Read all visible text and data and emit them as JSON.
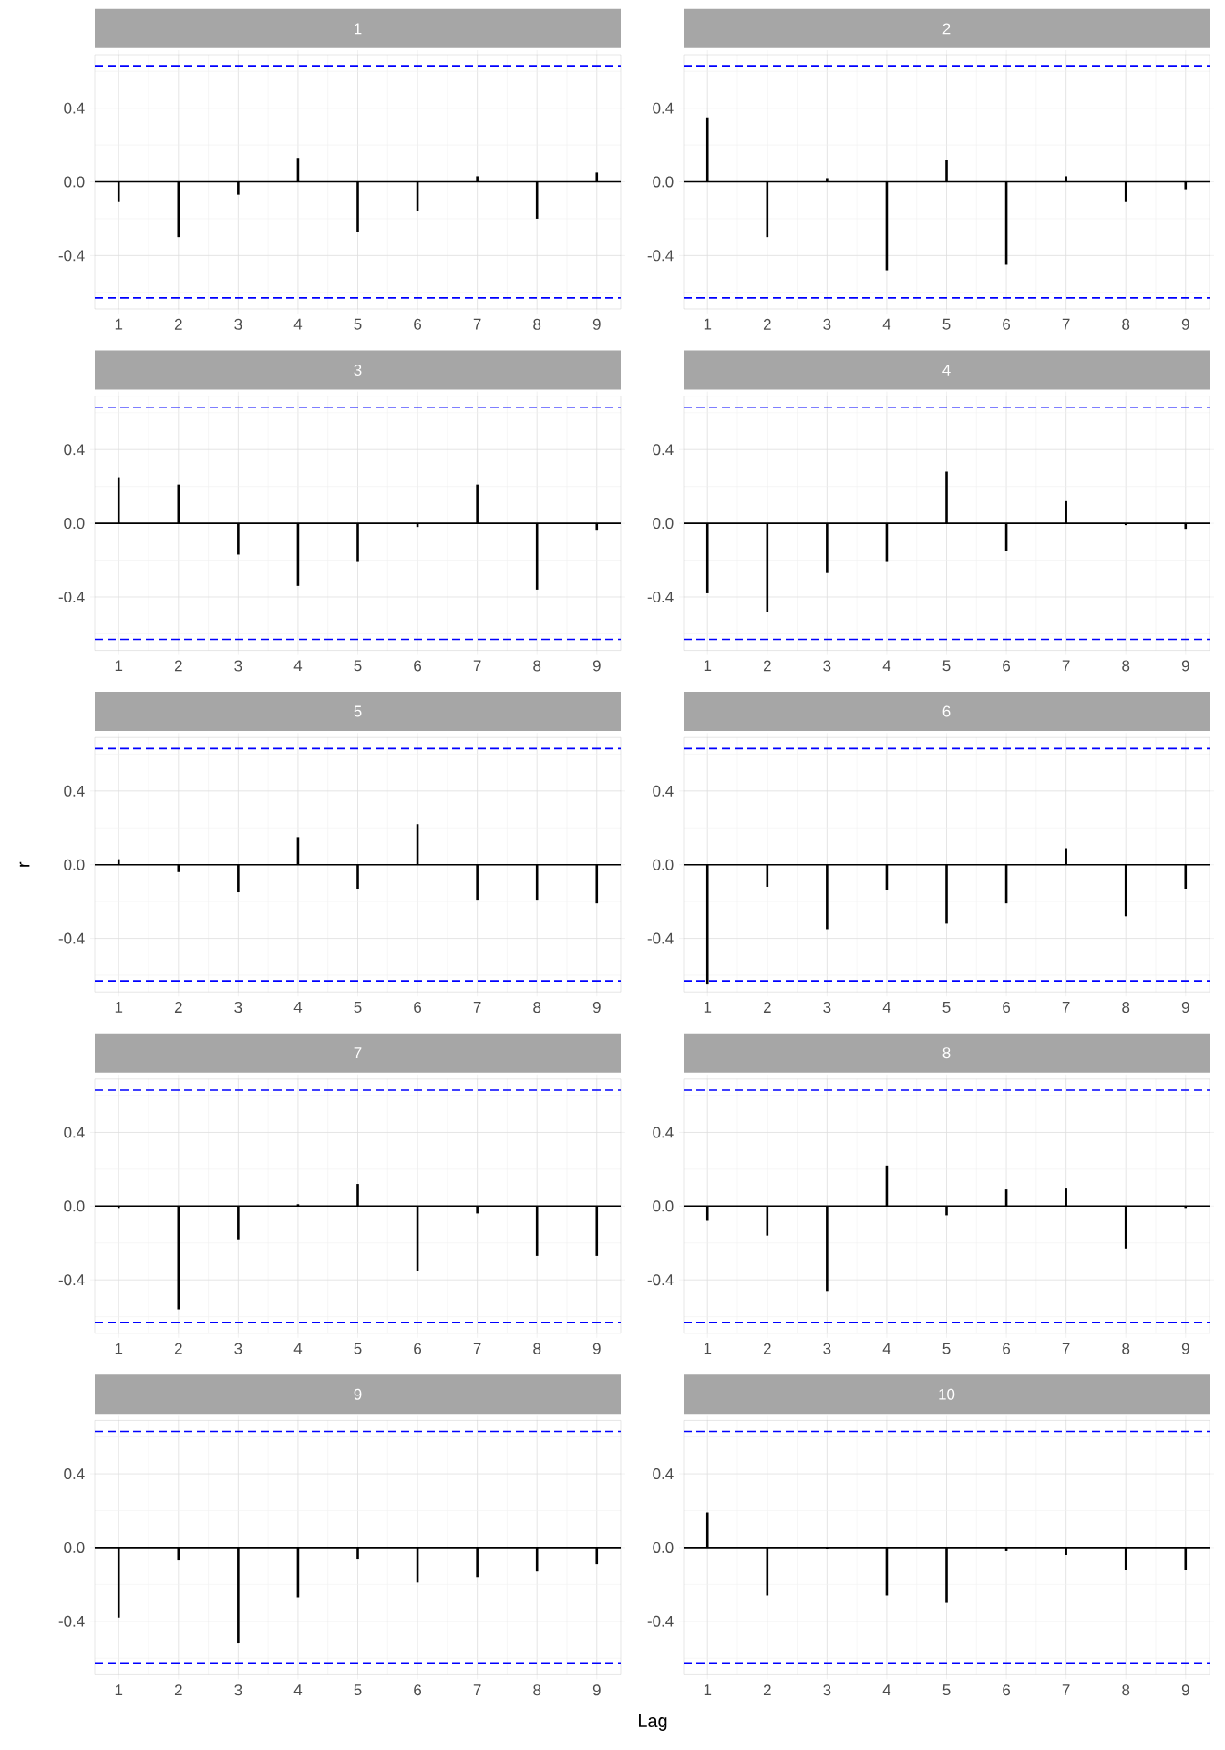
{
  "chart_data": [
    {
      "type": "bar",
      "title": "1",
      "x": [
        1,
        2,
        3,
        4,
        5,
        6,
        7,
        8,
        9
      ],
      "values": [
        -0.11,
        -0.3,
        -0.07,
        0.13,
        -0.27,
        -0.16,
        0.03,
        -0.2,
        0.05
      ],
      "color": "#000000",
      "xlim": [
        0.6,
        9.4
      ],
      "ylim": [
        -0.69,
        0.69
      ],
      "xticks": [
        1,
        2,
        3,
        4,
        5,
        6,
        7,
        8,
        9
      ],
      "yticks": [
        {
          "value": -0.4,
          "label": "-0.4"
        },
        {
          "value": 0,
          "label": "0.0"
        },
        {
          "value": 0.4,
          "label": "0.4"
        }
      ],
      "grid": true,
      "ref_lines": [
        {
          "axis": "y",
          "value": 0,
          "color": "#000000",
          "line_style": "solid"
        },
        {
          "axis": "y",
          "value": 0.63,
          "color": "#0000ff",
          "line_style": "dashed"
        },
        {
          "axis": "y",
          "value": -0.63,
          "color": "#0000ff",
          "line_style": "dashed"
        }
      ]
    },
    {
      "type": "bar",
      "title": "2",
      "x": [
        1,
        2,
        3,
        4,
        5,
        6,
        7,
        8,
        9
      ],
      "values": [
        0.35,
        -0.3,
        0.02,
        -0.48,
        0.12,
        -0.45,
        0.03,
        -0.11,
        -0.04
      ],
      "color": "#000000",
      "xlim": [
        0.6,
        9.4
      ],
      "ylim": [
        -0.69,
        0.69
      ],
      "xticks": [
        1,
        2,
        3,
        4,
        5,
        6,
        7,
        8,
        9
      ],
      "yticks": [
        {
          "value": -0.4,
          "label": "-0.4"
        },
        {
          "value": 0,
          "label": "0.0"
        },
        {
          "value": 0.4,
          "label": "0.4"
        }
      ],
      "grid": true,
      "ref_lines": [
        {
          "axis": "y",
          "value": 0,
          "color": "#000000",
          "line_style": "solid"
        },
        {
          "axis": "y",
          "value": 0.63,
          "color": "#0000ff",
          "line_style": "dashed"
        },
        {
          "axis": "y",
          "value": -0.63,
          "color": "#0000ff",
          "line_style": "dashed"
        }
      ]
    },
    {
      "type": "bar",
      "title": "3",
      "x": [
        1,
        2,
        3,
        4,
        5,
        6,
        7,
        8,
        9
      ],
      "values": [
        0.25,
        0.21,
        -0.17,
        -0.34,
        -0.21,
        -0.02,
        0.21,
        -0.36,
        -0.04
      ],
      "color": "#000000",
      "xlim": [
        0.6,
        9.4
      ],
      "ylim": [
        -0.69,
        0.69
      ],
      "xticks": [
        1,
        2,
        3,
        4,
        5,
        6,
        7,
        8,
        9
      ],
      "yticks": [
        {
          "value": -0.4,
          "label": "-0.4"
        },
        {
          "value": 0,
          "label": "0.0"
        },
        {
          "value": 0.4,
          "label": "0.4"
        }
      ],
      "grid": true,
      "ref_lines": [
        {
          "axis": "y",
          "value": 0,
          "color": "#000000",
          "line_style": "solid"
        },
        {
          "axis": "y",
          "value": 0.63,
          "color": "#0000ff",
          "line_style": "dashed"
        },
        {
          "axis": "y",
          "value": -0.63,
          "color": "#0000ff",
          "line_style": "dashed"
        }
      ]
    },
    {
      "type": "bar",
      "title": "4",
      "x": [
        1,
        2,
        3,
        4,
        5,
        6,
        7,
        8,
        9
      ],
      "values": [
        -0.38,
        -0.48,
        -0.27,
        -0.21,
        0.28,
        -0.15,
        0.12,
        -0.01,
        -0.03
      ],
      "color": "#000000",
      "xlim": [
        0.6,
        9.4
      ],
      "ylim": [
        -0.69,
        0.69
      ],
      "xticks": [
        1,
        2,
        3,
        4,
        5,
        6,
        7,
        8,
        9
      ],
      "yticks": [
        {
          "value": -0.4,
          "label": "-0.4"
        },
        {
          "value": 0,
          "label": "0.0"
        },
        {
          "value": 0.4,
          "label": "0.4"
        }
      ],
      "grid": true,
      "ref_lines": [
        {
          "axis": "y",
          "value": 0,
          "color": "#000000",
          "line_style": "solid"
        },
        {
          "axis": "y",
          "value": 0.63,
          "color": "#0000ff",
          "line_style": "dashed"
        },
        {
          "axis": "y",
          "value": -0.63,
          "color": "#0000ff",
          "line_style": "dashed"
        }
      ]
    },
    {
      "type": "bar",
      "title": "5",
      "ylabel": "r",
      "x": [
        1,
        2,
        3,
        4,
        5,
        6,
        7,
        8,
        9
      ],
      "values": [
        0.03,
        -0.04,
        -0.15,
        0.15,
        -0.13,
        0.22,
        -0.19,
        -0.19,
        -0.21
      ],
      "color": "#000000",
      "xlim": [
        0.6,
        9.4
      ],
      "ylim": [
        -0.69,
        0.69
      ],
      "xticks": [
        1,
        2,
        3,
        4,
        5,
        6,
        7,
        8,
        9
      ],
      "yticks": [
        {
          "value": -0.4,
          "label": "-0.4"
        },
        {
          "value": 0,
          "label": "0.0"
        },
        {
          "value": 0.4,
          "label": "0.4"
        }
      ],
      "grid": true,
      "ref_lines": [
        {
          "axis": "y",
          "value": 0,
          "color": "#000000",
          "line_style": "solid"
        },
        {
          "axis": "y",
          "value": 0.63,
          "color": "#0000ff",
          "line_style": "dashed"
        },
        {
          "axis": "y",
          "value": -0.63,
          "color": "#0000ff",
          "line_style": "dashed"
        }
      ]
    },
    {
      "type": "bar",
      "title": "6",
      "x": [
        1,
        2,
        3,
        4,
        5,
        6,
        7,
        8,
        9
      ],
      "values": [
        -0.65,
        -0.12,
        -0.35,
        -0.14,
        -0.32,
        -0.21,
        0.09,
        -0.28,
        -0.13
      ],
      "color": "#000000",
      "xlim": [
        0.6,
        9.4
      ],
      "ylim": [
        -0.69,
        0.69
      ],
      "xticks": [
        1,
        2,
        3,
        4,
        5,
        6,
        7,
        8,
        9
      ],
      "yticks": [
        {
          "value": -0.4,
          "label": "-0.4"
        },
        {
          "value": 0,
          "label": "0.0"
        },
        {
          "value": 0.4,
          "label": "0.4"
        }
      ],
      "grid": true,
      "ref_lines": [
        {
          "axis": "y",
          "value": 0,
          "color": "#000000",
          "line_style": "solid"
        },
        {
          "axis": "y",
          "value": 0.63,
          "color": "#0000ff",
          "line_style": "dashed"
        },
        {
          "axis": "y",
          "value": -0.63,
          "color": "#0000ff",
          "line_style": "dashed"
        }
      ]
    },
    {
      "type": "bar",
      "title": "7",
      "x": [
        1,
        2,
        3,
        4,
        5,
        6,
        7,
        8,
        9
      ],
      "values": [
        -0.01,
        -0.56,
        -0.18,
        0.01,
        0.12,
        -0.35,
        -0.04,
        -0.27,
        -0.27
      ],
      "color": "#000000",
      "xlim": [
        0.6,
        9.4
      ],
      "ylim": [
        -0.69,
        0.69
      ],
      "xticks": [
        1,
        2,
        3,
        4,
        5,
        6,
        7,
        8,
        9
      ],
      "yticks": [
        {
          "value": -0.4,
          "label": "-0.4"
        },
        {
          "value": 0,
          "label": "0.0"
        },
        {
          "value": 0.4,
          "label": "0.4"
        }
      ],
      "grid": true,
      "ref_lines": [
        {
          "axis": "y",
          "value": 0,
          "color": "#000000",
          "line_style": "solid"
        },
        {
          "axis": "y",
          "value": 0.63,
          "color": "#0000ff",
          "line_style": "dashed"
        },
        {
          "axis": "y",
          "value": -0.63,
          "color": "#0000ff",
          "line_style": "dashed"
        }
      ]
    },
    {
      "type": "bar",
      "title": "8",
      "x": [
        1,
        2,
        3,
        4,
        5,
        6,
        7,
        8,
        9
      ],
      "values": [
        -0.08,
        -0.16,
        -0.46,
        0.22,
        -0.05,
        0.09,
        0.1,
        -0.23,
        -0.01
      ],
      "color": "#000000",
      "xlim": [
        0.6,
        9.4
      ],
      "ylim": [
        -0.69,
        0.69
      ],
      "xticks": [
        1,
        2,
        3,
        4,
        5,
        6,
        7,
        8,
        9
      ],
      "yticks": [
        {
          "value": -0.4,
          "label": "-0.4"
        },
        {
          "value": 0,
          "label": "0.0"
        },
        {
          "value": 0.4,
          "label": "0.4"
        }
      ],
      "grid": true,
      "ref_lines": [
        {
          "axis": "y",
          "value": 0,
          "color": "#000000",
          "line_style": "solid"
        },
        {
          "axis": "y",
          "value": 0.63,
          "color": "#0000ff",
          "line_style": "dashed"
        },
        {
          "axis": "y",
          "value": -0.63,
          "color": "#0000ff",
          "line_style": "dashed"
        }
      ]
    },
    {
      "type": "bar",
      "title": "9",
      "xlabel": "Lag",
      "x": [
        1,
        2,
        3,
        4,
        5,
        6,
        7,
        8,
        9
      ],
      "values": [
        -0.38,
        -0.07,
        -0.52,
        -0.27,
        -0.06,
        -0.19,
        -0.16,
        -0.13,
        -0.09
      ],
      "color": "#000000",
      "xlim": [
        0.6,
        9.4
      ],
      "ylim": [
        -0.69,
        0.69
      ],
      "xticks": [
        1,
        2,
        3,
        4,
        5,
        6,
        7,
        8,
        9
      ],
      "yticks": [
        {
          "value": -0.4,
          "label": "-0.4"
        },
        {
          "value": 0,
          "label": "0.0"
        },
        {
          "value": 0.4,
          "label": "0.4"
        }
      ],
      "grid": true,
      "ref_lines": [
        {
          "axis": "y",
          "value": 0,
          "color": "#000000",
          "line_style": "solid"
        },
        {
          "axis": "y",
          "value": 0.63,
          "color": "#0000ff",
          "line_style": "dashed"
        },
        {
          "axis": "y",
          "value": -0.63,
          "color": "#0000ff",
          "line_style": "dashed"
        }
      ]
    },
    {
      "type": "bar",
      "title": "10",
      "x": [
        1,
        2,
        3,
        4,
        5,
        6,
        7,
        8,
        9
      ],
      "values": [
        0.19,
        -0.26,
        -0.01,
        -0.26,
        -0.3,
        -0.02,
        -0.04,
        -0.12,
        -0.12
      ],
      "color": "#000000",
      "xlim": [
        0.6,
        9.4
      ],
      "ylim": [
        -0.69,
        0.69
      ],
      "xticks": [
        1,
        2,
        3,
        4,
        5,
        6,
        7,
        8,
        9
      ],
      "yticks": [
        {
          "value": -0.4,
          "label": "-0.4"
        },
        {
          "value": 0,
          "label": "0.0"
        },
        {
          "value": 0.4,
          "label": "0.4"
        }
      ],
      "grid": true,
      "ref_lines": [
        {
          "axis": "y",
          "value": 0,
          "color": "#000000",
          "line_style": "solid"
        },
        {
          "axis": "y",
          "value": 0.63,
          "color": "#0000ff",
          "line_style": "dashed"
        },
        {
          "axis": "y",
          "value": -0.63,
          "color": "#0000ff",
          "line_style": "dashed"
        }
      ]
    }
  ]
}
